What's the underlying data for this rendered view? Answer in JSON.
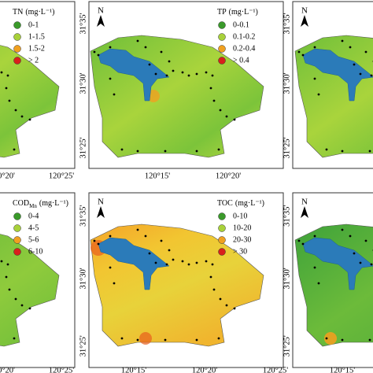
{
  "panels": [
    {
      "title": "TN",
      "unit": "(mg·L⁻¹)",
      "legend": [
        {
          "label": "0-1",
          "color": "#3a9a2a"
        },
        {
          "label": "1-1.5",
          "color": "#a8d13a"
        },
        {
          "label": "1.5-2",
          "color": "#f0a020"
        },
        {
          "label": "> 2",
          "color": "#d8201c"
        }
      ],
      "x_ticks": [
        "0°20'",
        "120°25'"
      ]
    },
    {
      "title": "TP",
      "unit": "(mg·L⁻¹)",
      "north": "N",
      "legend": [
        {
          "label": "0-0.1",
          "color": "#3a9a2a"
        },
        {
          "label": "0.1-0.2",
          "color": "#a8d13a"
        },
        {
          "label": "0.2-0.4",
          "color": "#f0a020"
        },
        {
          "label": "> 0.4",
          "color": "#d8201c"
        }
      ],
      "y_ticks": [
        "31°35'",
        "31°30'",
        "31°25'"
      ],
      "x_ticks": [
        "120°15'",
        "120°20'"
      ]
    },
    {
      "north": "N",
      "y_ticks": [
        "31°35'",
        "31°30'",
        "31°25'"
      ]
    },
    {
      "title": "COD",
      "subscript": "Mn",
      "unit": "(mg·L⁻¹)",
      "legend": [
        {
          "label": "0-4",
          "color": "#3a9a2a"
        },
        {
          "label": "4-5",
          "color": "#a8d13a"
        },
        {
          "label": "5-6",
          "color": "#f0a020"
        },
        {
          "label": "6-10",
          "color": "#d8201c"
        }
      ],
      "x_ticks": [
        "0°20'",
        "120°25'"
      ]
    },
    {
      "title": "TOC",
      "unit": "(mg·L⁻¹)",
      "north": "N",
      "legend": [
        {
          "label": "0-10",
          "color": "#3a9a2a"
        },
        {
          "label": "10-20",
          "color": "#a8d13a"
        },
        {
          "label": "20-30",
          "color": "#f0a020"
        },
        {
          "label": "> 30",
          "color": "#d8201c"
        }
      ],
      "y_ticks": [
        "31°35'",
        "31°30'",
        "31°25'"
      ],
      "x_ticks": [
        "120°15'",
        "120°20'",
        "120°25'"
      ]
    },
    {
      "north": "N",
      "y_ticks": [
        "31°35'",
        "31°30'",
        "31°25'"
      ],
      "x_ticks": [
        "120°15'"
      ]
    }
  ]
}
